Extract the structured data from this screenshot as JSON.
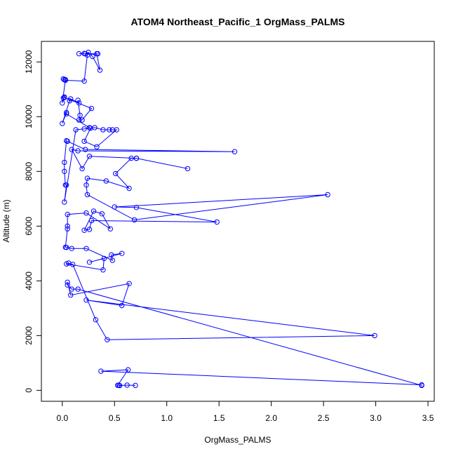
{
  "chart_data": {
    "type": "line",
    "title": "ATOM4 Northeast_Pacific_1 OrgMass_PALMS",
    "xlabel": "OrgMass_PALMS",
    "ylabel": "Altitude (m)",
    "xlim": [
      -0.2,
      3.56
    ],
    "ylim": [
      -400,
      12750
    ],
    "xticks": [
      0,
      0.5,
      1,
      1.5,
      2,
      2.5,
      3,
      3.5
    ],
    "xtick_labels": [
      "0.0",
      "0.5",
      "1.0",
      "1.5",
      "2.0",
      "2.5",
      "3.0",
      "3.5"
    ],
    "yticks": [
      0,
      2000,
      4000,
      6000,
      8000,
      10000,
      12000
    ],
    "ytick_labels": [
      "0",
      "2000",
      "4000",
      "6000",
      "8000",
      "10000",
      "12000"
    ],
    "grid": false,
    "legend": "none",
    "series": [
      {
        "color": "#0000ff",
        "marker": "open-circle",
        "points": [
          [
            0.7,
            180
          ],
          [
            0.62,
            190
          ],
          [
            0.55,
            175
          ],
          [
            0.54,
            190
          ],
          [
            0.53,
            185
          ],
          [
            0.63,
            750
          ],
          [
            0.37,
            700
          ],
          [
            3.44,
            200
          ],
          [
            3.44,
            180
          ],
          [
            0.15,
            3700
          ],
          [
            0.09,
            3700
          ],
          [
            0.05,
            3850
          ],
          [
            0.05,
            3950
          ],
          [
            0.08,
            3480
          ],
          [
            0.64,
            3900
          ],
          [
            0.57,
            3100
          ],
          [
            0.23,
            3300
          ],
          [
            2.99,
            2000
          ],
          [
            0.43,
            1850
          ],
          [
            0.32,
            2580
          ],
          [
            0.1,
            4600
          ],
          [
            0.06,
            4650
          ],
          [
            0.04,
            4620
          ],
          [
            0.39,
            4400
          ],
          [
            0.4,
            4820
          ],
          [
            0.26,
            4680
          ],
          [
            0.57,
            5000
          ],
          [
            0.47,
            4950
          ],
          [
            0.48,
            4750
          ],
          [
            0.23,
            5180
          ],
          [
            0.09,
            5180
          ],
          [
            0.04,
            5220
          ],
          [
            0.03,
            5230
          ],
          [
            0.05,
            5900
          ],
          [
            0.05,
            6000
          ],
          [
            0.05,
            6430
          ],
          [
            0.23,
            6480
          ],
          [
            0.46,
            5900
          ],
          [
            0.38,
            6450
          ],
          [
            0.3,
            6550
          ],
          [
            0.21,
            5850
          ],
          [
            0.26,
            5880
          ],
          [
            0.28,
            6200
          ],
          [
            1.48,
            6150
          ],
          [
            0.71,
            6680
          ],
          [
            0.5,
            6700
          ],
          [
            2.54,
            7150
          ],
          [
            0.69,
            6230
          ],
          [
            0.24,
            7150
          ],
          [
            0.23,
            7500
          ],
          [
            0.24,
            7750
          ],
          [
            0.42,
            7650
          ],
          [
            0.64,
            7380
          ],
          [
            0.51,
            7920
          ],
          [
            0.66,
            8480
          ],
          [
            0.71,
            8480
          ],
          [
            1.2,
            8100
          ],
          [
            0.71,
            8480
          ],
          [
            0.26,
            8550
          ],
          [
            0.19,
            8100
          ],
          [
            0.09,
            8800
          ],
          [
            0.15,
            8750
          ],
          [
            1.65,
            8720
          ],
          [
            0.22,
            8800
          ],
          [
            0.05,
            9100
          ],
          [
            0.04,
            9120
          ],
          [
            0.02,
            8330
          ],
          [
            0.02,
            8000
          ],
          [
            0.03,
            7500
          ],
          [
            0.04,
            7500
          ],
          [
            0.02,
            6880
          ],
          [
            0.13,
            9520
          ],
          [
            0.21,
            9550
          ],
          [
            0.31,
            9600
          ],
          [
            0.39,
            9520
          ],
          [
            0.45,
            9520
          ],
          [
            0.48,
            9520
          ],
          [
            0.52,
            9520
          ],
          [
            0.33,
            8900
          ],
          [
            0.21,
            9100
          ],
          [
            0.27,
            9580
          ],
          [
            0.26,
            9600
          ],
          [
            0.04,
            10100
          ],
          [
            0.04,
            10150
          ],
          [
            0.0,
            9750
          ],
          [
            0.07,
            10580
          ],
          [
            0.08,
            10650
          ],
          [
            0.16,
            10500
          ],
          [
            0.15,
            10600
          ],
          [
            0.17,
            10050
          ],
          [
            0.16,
            9880
          ],
          [
            0.19,
            9880
          ],
          [
            0.28,
            10300
          ],
          [
            0.02,
            10700
          ],
          [
            0.02,
            10720
          ],
          [
            0.01,
            10680
          ],
          [
            0.0,
            10500
          ],
          [
            0.03,
            11350
          ],
          [
            0.02,
            11350
          ],
          [
            0.01,
            11380
          ],
          [
            0.03,
            11330
          ],
          [
            0.21,
            11300
          ],
          [
            0.24,
            12250
          ],
          [
            0.25,
            12350
          ],
          [
            0.29,
            12200
          ],
          [
            0.36,
            11700
          ],
          [
            0.33,
            12300
          ],
          [
            0.34,
            12300
          ],
          [
            0.22,
            12300
          ],
          [
            0.21,
            12310
          ],
          [
            0.16,
            12300
          ]
        ]
      }
    ]
  }
}
